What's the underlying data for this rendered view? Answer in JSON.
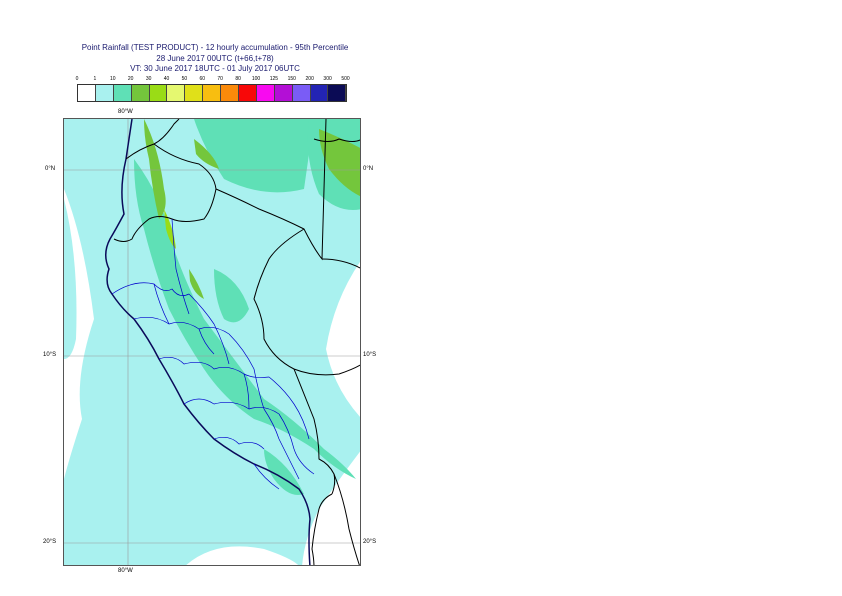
{
  "title": {
    "line1": "Point Rainfall (TEST PRODUCT) - 12 hourly accumulation - 95th Percentile",
    "line2": "28 June 2017 00UTC (t+66,t+78)",
    "line3": "VT: 30 June 2017 18UTC - 01 July 2017 06UTC"
  },
  "legend": {
    "labels": [
      "0",
      "1",
      "10",
      "20",
      "30",
      "40",
      "50",
      "60",
      "70",
      "80",
      "100",
      "125",
      "150",
      "200",
      "300",
      "500"
    ],
    "colors": [
      "#ffffff",
      "#a9f1ef",
      "#5fe0b6",
      "#74c63c",
      "#9adc16",
      "#e5f870",
      "#e0e019",
      "#f8be10",
      "#fb8a0a",
      "#f80808",
      "#f80af0",
      "#b30fd6",
      "#7a5cf6",
      "#2324b4",
      "#0b0b55"
    ]
  },
  "axes": {
    "top_lon": "80°W",
    "bottom_lon": "80°W",
    "lat_labels": [
      "0°N",
      "10°S",
      "20°S"
    ]
  },
  "map": {
    "colors": {
      "base": "#a9f1ef",
      "light_green": "#5fe0b6",
      "green": "#74c63c",
      "yellow_green": "#9adc16",
      "ocean_dry": "#ffffff",
      "grid": "#9a9a9a",
      "country_border": "#000000",
      "coastline": "#0a0a5a",
      "region_border": "#0000cc"
    }
  }
}
